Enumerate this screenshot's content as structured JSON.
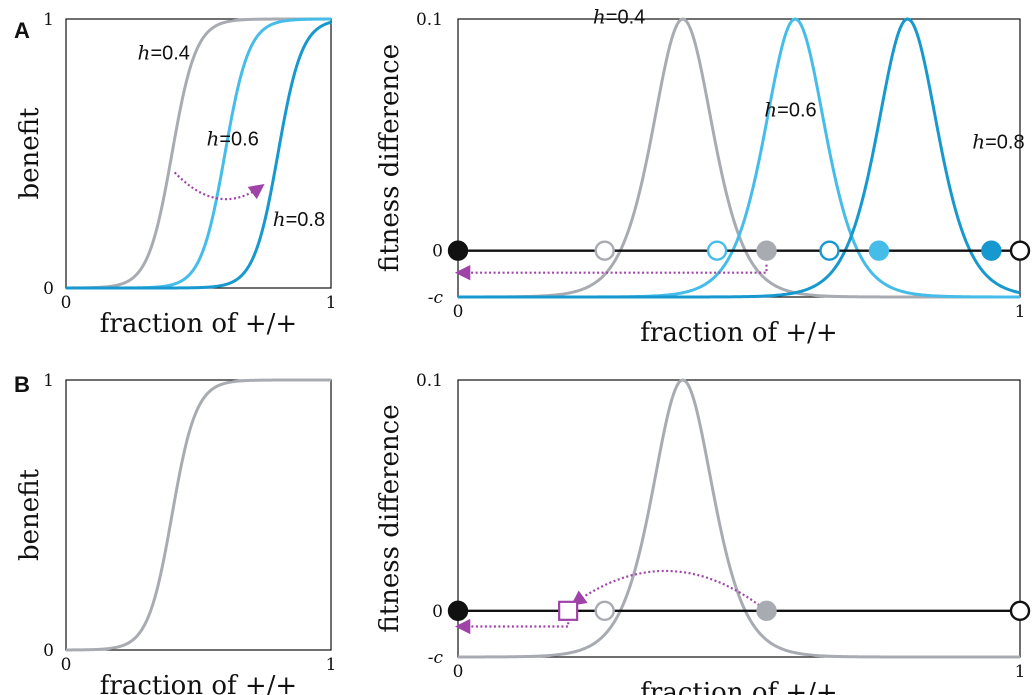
{
  "panels": {
    "A": {
      "letter": "A"
    },
    "B": {
      "letter": "B"
    }
  },
  "chart_data": [
    {
      "panel": "A",
      "id": "A-benefit",
      "type": "line",
      "xlabel": "fraction of +/+",
      "ylabel": "benefit",
      "xlim": [
        0,
        1
      ],
      "ylim": [
        0,
        1
      ],
      "xticks": [
        "0",
        "1"
      ],
      "yticks": [
        "0",
        "1"
      ],
      "grid": false,
      "series": [
        {
          "name": "h=0.4",
          "h": 0.4,
          "steepness": 22,
          "color": "#a8acb2"
        },
        {
          "name": "h=0.6",
          "h": 0.6,
          "steepness": 22,
          "color": "#46bde9"
        },
        {
          "name": "h=0.8",
          "h": 0.8,
          "steepness": 22,
          "color": "#1799cf"
        }
      ],
      "labels": [
        {
          "var": "h",
          "text": "=0.4",
          "x": 0.27,
          "y": 0.85
        },
        {
          "var": "h",
          "text": "=0.6",
          "x": 0.53,
          "y": 0.53
        },
        {
          "var": "h",
          "text": "=0.8",
          "x": 0.78,
          "y": 0.23
        }
      ],
      "arrows": [
        {
          "from": [
            0.41,
            0.43
          ],
          "to": [
            0.74,
            0.38
          ],
          "color": "#a043a8",
          "bend": 0.12
        }
      ]
    },
    {
      "panel": "A",
      "id": "A-fitness",
      "type": "line",
      "xlabel": "fraction of +/+",
      "ylabel": "fitness difference",
      "xlim": [
        0,
        1
      ],
      "ylim": [
        -0.02,
        0.1
      ],
      "xticks": [
        "0",
        "1"
      ],
      "yticks": [
        {
          "label": "0.1",
          "value": 0.1
        },
        {
          "label": "0",
          "value": 0
        },
        {
          "label": "-c",
          "value": -0.02
        }
      ],
      "grid": false,
      "baseline": 0,
      "series": [
        {
          "name": "h=0.4",
          "peak_x": 0.4,
          "peak": 0.1,
          "min": -0.02,
          "width": 0.09,
          "color": "#a8acb2"
        },
        {
          "name": "h=0.6",
          "peak_x": 0.6,
          "peak": 0.1,
          "min": -0.02,
          "width": 0.09,
          "color": "#46bde9"
        },
        {
          "name": "h=0.8",
          "peak_x": 0.8,
          "peak": 0.1,
          "min": -0.02,
          "width": 0.09,
          "color": "#1799cf"
        }
      ],
      "labels": [
        {
          "var": "h",
          "text": "=0.4",
          "x": 0.24,
          "y": 0.098
        },
        {
          "var": "h",
          "text": "=0.6",
          "x": 0.545,
          "y": 0.058
        },
        {
          "var": "h",
          "text": "=0.8",
          "x": 0.915,
          "y": 0.044
        }
      ],
      "equilibria": [
        {
          "x": 0.0,
          "stable": true,
          "color": "#111111"
        },
        {
          "x": 0.261,
          "stable": false,
          "color": "#a8acb2"
        },
        {
          "x": 0.461,
          "stable": false,
          "color": "#46bde9"
        },
        {
          "x": 0.661,
          "stable": false,
          "color": "#1799cf"
        },
        {
          "x": 0.549,
          "stable": true,
          "color": "#a8acb2"
        },
        {
          "x": 0.749,
          "stable": true,
          "color": "#46bde9"
        },
        {
          "x": 0.949,
          "stable": true,
          "color": "#1799cf"
        },
        {
          "x": 1.0,
          "stable": false,
          "color": "#111111"
        }
      ],
      "arrows": [
        {
          "points": [
            [
              0.549,
              -0.006
            ],
            [
              0.549,
              -0.0095
            ],
            [
              0.0,
              -0.0095
            ]
          ],
          "color": "#a043a8"
        }
      ]
    },
    {
      "panel": "B",
      "id": "B-benefit",
      "type": "line",
      "xlabel": "fraction of +/+",
      "ylabel": "benefit",
      "xlim": [
        0,
        1
      ],
      "ylim": [
        0,
        1
      ],
      "xticks": [
        "0",
        "1"
      ],
      "yticks": [
        "0",
        "1"
      ],
      "grid": false,
      "series": [
        {
          "h": 0.4,
          "steepness": 22,
          "color": "#a8acb2"
        }
      ]
    },
    {
      "panel": "B",
      "id": "B-fitness",
      "type": "line",
      "xlabel": "fraction of +/+",
      "ylabel": "fitness difference",
      "xlim": [
        0,
        1
      ],
      "ylim": [
        -0.02,
        0.1
      ],
      "xticks": [
        "0",
        "1"
      ],
      "yticks": [
        {
          "label": "0.1",
          "value": 0.1
        },
        {
          "label": "0",
          "value": 0
        },
        {
          "label": "-c",
          "value": -0.02
        }
      ],
      "grid": false,
      "baseline": 0,
      "series": [
        {
          "peak_x": 0.4,
          "peak": 0.1,
          "min": -0.02,
          "width": 0.09,
          "color": "#a8acb2"
        }
      ],
      "equilibria": [
        {
          "x": 0.0,
          "stable": true,
          "color": "#111111"
        },
        {
          "x": 0.261,
          "stable": false,
          "color": "#a8acb2"
        },
        {
          "x": 0.549,
          "stable": true,
          "color": "#a8acb2"
        },
        {
          "x": 1.0,
          "stable": false,
          "color": "#111111"
        }
      ],
      "markers": [
        {
          "shape": "square",
          "x": 0.196,
          "y": 0.0,
          "color": "#a043a8"
        }
      ],
      "arrows": [
        {
          "from": [
            0.549,
            0.0
          ],
          "to": [
            0.205,
            0.003
          ],
          "color": "#a043a8",
          "bend": 0.03
        },
        {
          "points": [
            [
              0.196,
              -0.003
            ],
            [
              0.196,
              -0.0068
            ],
            [
              0.0,
              -0.0068
            ]
          ],
          "color": "#a043a8"
        }
      ]
    }
  ]
}
